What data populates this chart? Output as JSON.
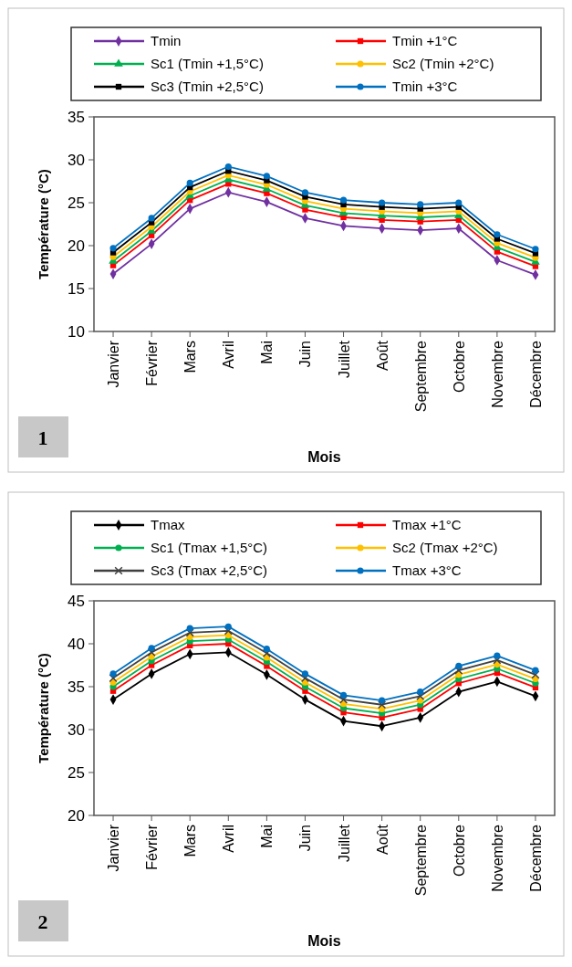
{
  "chart_data": [
    {
      "type": "line",
      "xlabel": "Mois",
      "ylabel": "Température (°C)",
      "categories": [
        "Janvier",
        "Février",
        "Mars",
        "Avril",
        "Mai",
        "Juin",
        "Juillet",
        "Août",
        "Septembre",
        "Octobre",
        "Novembre",
        "Décembre"
      ],
      "ylim": [
        10,
        35
      ],
      "yticks": [
        10,
        15,
        20,
        25,
        30,
        35
      ],
      "grid": false,
      "legend": "top",
      "annotations": [
        "1"
      ],
      "series": [
        {
          "name": "Tmin",
          "color": "#7030a0",
          "marker": "diamond",
          "values": [
            16.7,
            20.2,
            24.3,
            26.2,
            25.1,
            23.2,
            22.3,
            22.0,
            21.8,
            22.0,
            18.3,
            16.6
          ]
        },
        {
          "name": "Tmin +1°C",
          "color": "#ff0000",
          "marker": "square",
          "values": [
            17.7,
            21.2,
            25.3,
            27.2,
            26.1,
            24.2,
            23.3,
            23.0,
            22.8,
            23.0,
            19.3,
            17.6
          ]
        },
        {
          "name": "Sc1 (Tmin +1,5°C)",
          "color": "#00b050",
          "marker": "triangle",
          "values": [
            18.2,
            21.7,
            25.8,
            27.7,
            26.6,
            24.7,
            23.8,
            23.5,
            23.3,
            23.5,
            19.8,
            18.1
          ]
        },
        {
          "name": "Sc2 (Tmin +2°C)",
          "color": "#ffc000",
          "marker": "circle",
          "values": [
            18.7,
            22.2,
            26.3,
            28.2,
            27.1,
            25.2,
            24.3,
            24.0,
            23.8,
            24.0,
            20.3,
            18.6
          ]
        },
        {
          "name": "Sc3 (Tmin +2,5°C)",
          "color": "#000000",
          "marker": "square",
          "values": [
            19.2,
            22.7,
            26.8,
            28.7,
            27.6,
            25.7,
            24.8,
            24.5,
            24.3,
            24.5,
            20.8,
            19.1
          ]
        },
        {
          "name": "Tmin +3°C",
          "color": "#0070c0",
          "marker": "circle",
          "values": [
            19.7,
            23.2,
            27.3,
            29.2,
            28.1,
            26.2,
            25.3,
            25.0,
            24.8,
            25.0,
            21.3,
            19.6
          ]
        }
      ]
    },
    {
      "type": "line",
      "xlabel": "Mois",
      "ylabel": "Température (°C)",
      "categories": [
        "Janvier",
        "Février",
        "Mars",
        "Avril",
        "Mai",
        "Juin",
        "Juillet",
        "Août",
        "Septembre",
        "Octobre",
        "Novembre",
        "Décembre"
      ],
      "ylim": [
        20,
        45
      ],
      "yticks": [
        20,
        25,
        30,
        35,
        40,
        45
      ],
      "grid": false,
      "legend": "top",
      "annotations": [
        "2"
      ],
      "series": [
        {
          "name": "Tmax",
          "color": "#000000",
          "marker": "diamond",
          "values": [
            33.5,
            36.5,
            38.8,
            39.0,
            36.4,
            33.5,
            31.0,
            30.4,
            31.4,
            34.4,
            35.6,
            33.9
          ]
        },
        {
          "name": "Tmax +1°C",
          "color": "#ff0000",
          "marker": "square",
          "values": [
            34.5,
            37.5,
            39.8,
            40.0,
            37.4,
            34.5,
            32.0,
            31.4,
            32.4,
            35.4,
            36.6,
            34.9
          ]
        },
        {
          "name": "Sc1 (Tmax +1,5°C)",
          "color": "#00b050",
          "marker": "circle",
          "values": [
            35.0,
            38.0,
            40.3,
            40.5,
            37.9,
            35.0,
            32.5,
            31.9,
            32.9,
            35.9,
            37.1,
            35.4
          ]
        },
        {
          "name": "Sc2 (Tmax +2°C)",
          "color": "#ffc000",
          "marker": "circle",
          "values": [
            35.5,
            38.5,
            40.8,
            41.0,
            38.4,
            35.5,
            33.0,
            32.4,
            33.4,
            36.4,
            37.6,
            35.9
          ]
        },
        {
          "name": "Sc3 (Tmax +2,5°C)",
          "color": "#404040",
          "marker": "cross",
          "values": [
            36.0,
            39.0,
            41.3,
            41.5,
            38.9,
            36.0,
            33.5,
            32.9,
            33.9,
            36.9,
            38.1,
            36.4
          ]
        },
        {
          "name": "Tmax +3°C",
          "color": "#0070c0",
          "marker": "circle",
          "values": [
            36.5,
            39.5,
            41.8,
            42.0,
            39.4,
            36.5,
            34.0,
            33.4,
            34.4,
            37.4,
            38.6,
            36.9
          ]
        }
      ]
    }
  ]
}
